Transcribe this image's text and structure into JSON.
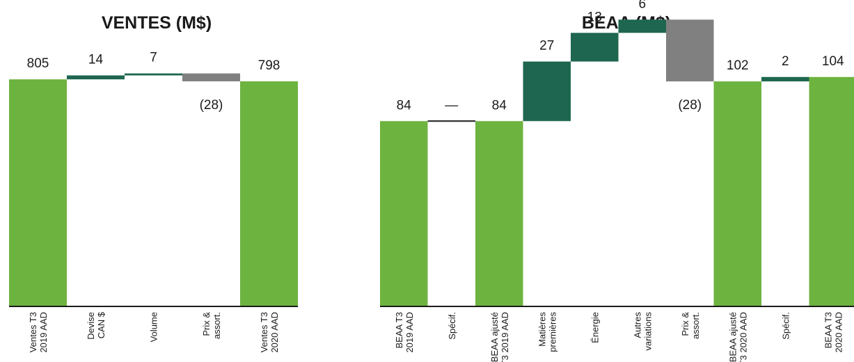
{
  "colors": {
    "total": "#6db33f",
    "increase": "#1e6650",
    "decrease": "#808080",
    "axis": "#1a1a1a"
  },
  "chart_data": [
    {
      "type": "bar",
      "subtype": "waterfall",
      "title": "VENTES (M$)",
      "ylim": [
        0,
        840
      ],
      "categories": [
        [
          "Ventes T3",
          "2019 AAD"
        ],
        [
          "Devise",
          "CAN $"
        ],
        [
          "Volume"
        ],
        [
          "Prix &",
          "assort."
        ],
        [
          "Ventes T3",
          "2020 AAD"
        ]
      ],
      "steps": [
        {
          "kind": "total",
          "value": 805,
          "label": "805"
        },
        {
          "kind": "delta",
          "value": 14,
          "label": "14"
        },
        {
          "kind": "delta",
          "value": 7,
          "label": "7"
        },
        {
          "kind": "delta",
          "value": -28,
          "label": "(28)"
        },
        {
          "kind": "total",
          "value": 798,
          "label": "798"
        }
      ],
      "grid": false,
      "legend": "none"
    },
    {
      "type": "bar",
      "subtype": "waterfall",
      "title": "BEAA (M$)",
      "ylim": [
        0,
        120
      ],
      "categories": [
        [
          "BEAA T3",
          "2019 AAD"
        ],
        [
          "Spécif."
        ],
        [
          "BEAA ajusté",
          "T3 2019 AAD"
        ],
        [
          "Matières",
          "premières"
        ],
        [
          "Énergie"
        ],
        [
          "Autres",
          "variations"
        ],
        [
          "Prix &",
          "assort."
        ],
        [
          "BEAA ajusté",
          "T3 2020 AAD"
        ],
        [
          "Spécif."
        ],
        [
          "BEAA T3",
          "2020 AAD"
        ]
      ],
      "steps": [
        {
          "kind": "total",
          "value": 84,
          "label": "84"
        },
        {
          "kind": "delta",
          "value": 0,
          "label": "—"
        },
        {
          "kind": "total",
          "value": 84,
          "label": "84"
        },
        {
          "kind": "delta",
          "value": 27,
          "label": "27"
        },
        {
          "kind": "delta",
          "value": 13,
          "label": "13"
        },
        {
          "kind": "delta",
          "value": 6,
          "label": "6"
        },
        {
          "kind": "delta",
          "value": -28,
          "label": "(28)"
        },
        {
          "kind": "total",
          "value": 102,
          "label": "102"
        },
        {
          "kind": "delta",
          "value": 2,
          "label": "2"
        },
        {
          "kind": "total",
          "value": 104,
          "label": "104"
        }
      ],
      "grid": false,
      "legend": "none"
    }
  ]
}
